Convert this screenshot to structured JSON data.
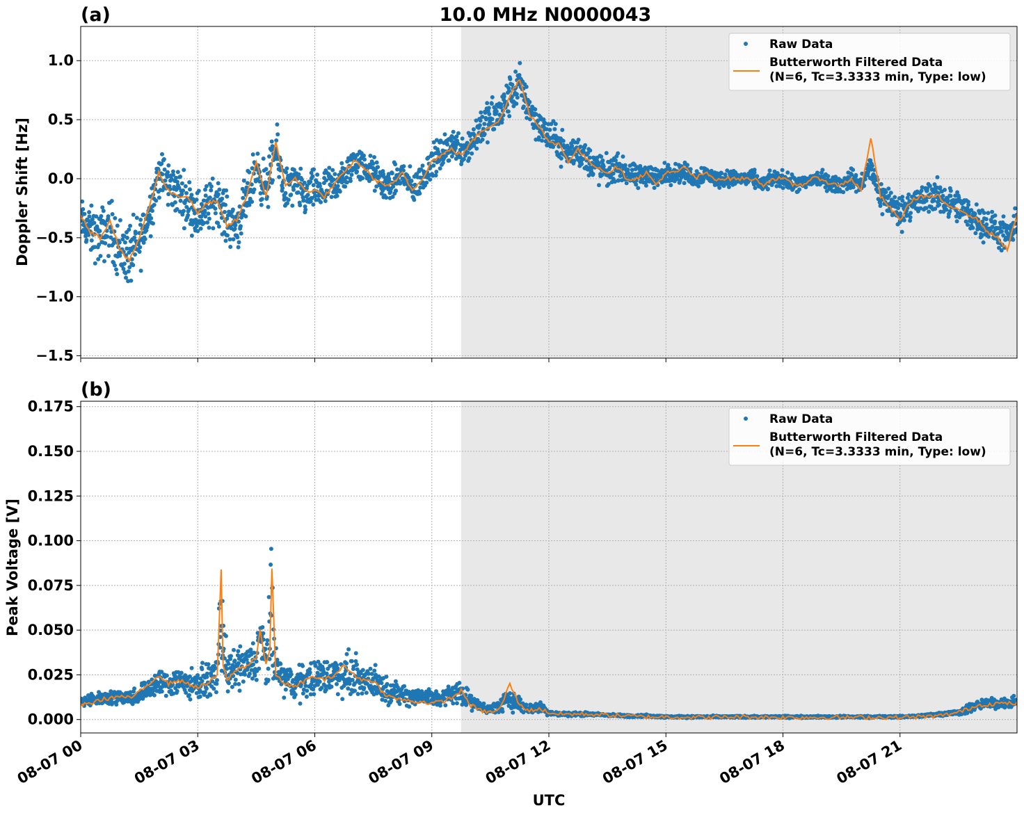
{
  "figure": {
    "title": "10.0 MHz N0000043",
    "xlabel": "UTC"
  },
  "colors": {
    "raw": "#1f77b4",
    "filtered": "#ff7f0e",
    "night_shade": "#e8e8e8",
    "grid": "#b0b0b0"
  },
  "chart_data": [
    {
      "type": "scatter",
      "panel_label": "(a)",
      "ylabel": "Doppler Shift [Hz]",
      "xlim": [
        0,
        24
      ],
      "ylim": [
        -1.52,
        1.29
      ],
      "yticks": [
        -1.5,
        -1.0,
        -0.5,
        0.0,
        0.5,
        1.0
      ],
      "ytick_labels": [
        "−1.5",
        "−1.0",
        "−0.5",
        "0.0",
        "0.5",
        "1.0"
      ],
      "xticks": [
        0,
        3,
        6,
        9,
        12,
        15,
        18,
        21
      ],
      "xtick_labels": [
        "08-07 00",
        "08-07 03",
        "08-07 06",
        "08-07 09",
        "08-07 12",
        "08-07 15",
        "08-07 18",
        "08-07 21"
      ],
      "grid": true,
      "shaded_span_hours": [
        9.75,
        24
      ],
      "legend_placement": "upper-right",
      "series": [
        {
          "name": "Raw Data",
          "kind": "points",
          "x_hours": [
            0.0,
            0.25,
            0.5,
            0.75,
            1.0,
            1.25,
            1.5,
            1.75,
            2.0,
            2.25,
            2.5,
            2.75,
            3.0,
            3.25,
            3.5,
            3.75,
            4.0,
            4.25,
            4.5,
            4.75,
            5.0,
            5.25,
            5.5,
            5.75,
            6.0,
            6.25,
            6.5,
            6.75,
            7.0,
            7.25,
            7.5,
            7.75,
            8.0,
            8.25,
            8.5,
            8.75,
            9.0,
            9.25,
            9.5,
            9.75,
            10.0,
            10.25,
            10.5,
            10.75,
            11.0,
            11.25,
            11.5,
            11.75,
            12.0,
            12.25,
            12.5,
            12.75,
            13.0,
            13.25,
            13.5,
            13.75,
            14.0,
            14.25,
            14.5,
            14.75,
            15.0,
            15.25,
            15.5,
            15.75,
            16.0,
            16.25,
            16.5,
            16.75,
            17.0,
            17.25,
            17.5,
            17.75,
            18.0,
            18.25,
            18.5,
            18.75,
            19.0,
            19.25,
            19.5,
            19.75,
            20.0,
            20.25,
            20.5,
            20.75,
            21.0,
            21.25,
            21.5,
            21.75,
            22.0,
            22.25,
            22.5,
            22.75,
            23.0,
            23.25,
            23.5,
            23.75,
            24.0
          ],
          "y_center": [
            -0.35,
            -0.45,
            -0.5,
            -0.4,
            -0.6,
            -0.65,
            -0.55,
            -0.3,
            0.05,
            -0.05,
            -0.1,
            -0.2,
            -0.3,
            -0.25,
            -0.15,
            -0.35,
            -0.4,
            -0.2,
            0.1,
            -0.1,
            0.25,
            -0.1,
            -0.05,
            -0.15,
            -0.1,
            -0.1,
            -0.05,
            0.0,
            0.15,
            0.1,
            0.05,
            -0.05,
            -0.05,
            0.05,
            -0.1,
            0.0,
            0.15,
            0.2,
            0.3,
            0.25,
            0.3,
            0.45,
            0.5,
            0.55,
            0.7,
            0.8,
            0.6,
            0.45,
            0.35,
            0.3,
            0.2,
            0.25,
            0.15,
            0.1,
            0.05,
            0.1,
            0.05,
            0.0,
            0.05,
            0.0,
            0.05,
            0.05,
            0.05,
            0.0,
            0.05,
            0.0,
            0.0,
            0.0,
            0.0,
            0.0,
            -0.05,
            0.0,
            0.0,
            -0.05,
            -0.05,
            0.0,
            0.0,
            -0.05,
            -0.05,
            0.0,
            -0.05,
            0.1,
            -0.15,
            -0.2,
            -0.3,
            -0.2,
            -0.2,
            -0.15,
            -0.15,
            -0.2,
            -0.25,
            -0.3,
            -0.35,
            -0.4,
            -0.45,
            -0.5,
            -0.4
          ],
          "y_spread": [
            0.25,
            0.3,
            0.35,
            0.35,
            0.4,
            0.4,
            0.35,
            0.3,
            0.3,
            0.3,
            0.3,
            0.3,
            0.3,
            0.3,
            0.3,
            0.3,
            0.3,
            0.3,
            0.3,
            0.3,
            0.3,
            0.3,
            0.25,
            0.25,
            0.25,
            0.25,
            0.25,
            0.2,
            0.2,
            0.2,
            0.2,
            0.2,
            0.2,
            0.2,
            0.2,
            0.2,
            0.2,
            0.2,
            0.2,
            0.2,
            0.25,
            0.25,
            0.25,
            0.25,
            0.25,
            0.25,
            0.25,
            0.2,
            0.2,
            0.2,
            0.2,
            0.2,
            0.2,
            0.2,
            0.2,
            0.15,
            0.15,
            0.15,
            0.15,
            0.15,
            0.12,
            0.12,
            0.12,
            0.12,
            0.12,
            0.1,
            0.1,
            0.1,
            0.1,
            0.1,
            0.1,
            0.1,
            0.1,
            0.1,
            0.1,
            0.1,
            0.1,
            0.1,
            0.1,
            0.12,
            0.12,
            0.15,
            0.2,
            0.2,
            0.2,
            0.2,
            0.2,
            0.2,
            0.2,
            0.2,
            0.2,
            0.2,
            0.2,
            0.2,
            0.2,
            0.2,
            0.2
          ]
        },
        {
          "name": "Butterworth Filtered Data\n(N=6, Tc=3.3333 min, Type: low)",
          "kind": "line",
          "x_hours": [
            0.0,
            0.25,
            0.5,
            0.75,
            1.0,
            1.25,
            1.5,
            1.75,
            2.0,
            2.25,
            2.5,
            2.75,
            3.0,
            3.25,
            3.5,
            3.75,
            4.0,
            4.25,
            4.5,
            4.75,
            5.0,
            5.25,
            5.5,
            5.75,
            6.0,
            6.25,
            6.5,
            6.75,
            7.0,
            7.25,
            7.5,
            7.75,
            8.0,
            8.25,
            8.5,
            8.75,
            9.0,
            9.25,
            9.5,
            9.75,
            10.0,
            10.25,
            10.5,
            10.75,
            11.0,
            11.25,
            11.5,
            11.75,
            12.0,
            12.25,
            12.5,
            12.75,
            13.0,
            13.25,
            13.5,
            13.75,
            14.0,
            14.25,
            14.5,
            14.75,
            15.0,
            15.25,
            15.5,
            15.75,
            16.0,
            16.25,
            16.5,
            16.75,
            17.0,
            17.25,
            17.5,
            17.75,
            18.0,
            18.25,
            18.5,
            18.75,
            19.0,
            19.25,
            19.5,
            19.75,
            20.0,
            20.25,
            20.5,
            20.75,
            21.0,
            21.25,
            21.5,
            21.75,
            22.0,
            22.25,
            22.5,
            22.75,
            23.0,
            23.25,
            23.5,
            23.75,
            24.0
          ],
          "y": [
            -0.3,
            -0.45,
            -0.5,
            -0.35,
            -0.6,
            -0.7,
            -0.5,
            -0.25,
            0.05,
            -0.1,
            -0.15,
            -0.15,
            -0.3,
            -0.2,
            -0.2,
            -0.4,
            -0.35,
            -0.15,
            0.15,
            -0.15,
            0.3,
            -0.05,
            0.0,
            -0.1,
            -0.1,
            -0.15,
            -0.05,
            0.05,
            0.15,
            0.1,
            0.0,
            -0.05,
            -0.05,
            0.05,
            -0.1,
            0.0,
            0.15,
            0.2,
            0.25,
            0.2,
            0.3,
            0.4,
            0.45,
            0.5,
            0.7,
            0.85,
            0.55,
            0.45,
            0.3,
            0.3,
            0.15,
            0.25,
            0.15,
            0.1,
            0.05,
            0.1,
            0.0,
            0.0,
            0.05,
            -0.05,
            0.05,
            0.05,
            0.1,
            0.0,
            0.05,
            0.0,
            0.0,
            0.0,
            0.0,
            0.0,
            -0.05,
            0.0,
            0.0,
            -0.05,
            -0.05,
            0.0,
            0.0,
            -0.05,
            -0.05,
            0.0,
            -0.1,
            0.35,
            -0.15,
            -0.25,
            -0.35,
            -0.2,
            -0.15,
            -0.15,
            -0.15,
            -0.25,
            -0.25,
            -0.3,
            -0.35,
            -0.45,
            -0.5,
            -0.6,
            -0.3
          ]
        }
      ]
    },
    {
      "type": "scatter",
      "panel_label": "(b)",
      "ylabel": "Peak Voltage [V]",
      "xlim": [
        0,
        24
      ],
      "ylim": [
        -0.0075,
        0.178
      ],
      "yticks": [
        0.0,
        0.025,
        0.05,
        0.075,
        0.1,
        0.125,
        0.15,
        0.175
      ],
      "ytick_labels": [
        "0.000",
        "0.025",
        "0.050",
        "0.075",
        "0.100",
        "0.125",
        "0.150",
        "0.175"
      ],
      "xticks": [
        0,
        3,
        6,
        9,
        12,
        15,
        18,
        21
      ],
      "xtick_labels": [
        "08-07 00",
        "08-07 03",
        "08-07 06",
        "08-07 09",
        "08-07 12",
        "08-07 15",
        "08-07 18",
        "08-07 21"
      ],
      "grid": true,
      "shaded_span_hours": [
        9.75,
        24
      ],
      "legend_placement": "upper-right",
      "series": [
        {
          "name": "Raw Data",
          "kind": "points",
          "x_hours": [
            0.0,
            0.25,
            0.5,
            0.75,
            1.0,
            1.25,
            1.5,
            1.75,
            2.0,
            2.25,
            2.5,
            2.75,
            3.0,
            3.25,
            3.5,
            3.6,
            3.75,
            4.0,
            4.25,
            4.5,
            4.6,
            4.75,
            4.9,
            5.0,
            5.25,
            5.5,
            5.75,
            6.0,
            6.25,
            6.5,
            6.75,
            7.0,
            7.25,
            7.5,
            7.75,
            8.0,
            8.25,
            8.5,
            8.75,
            9.0,
            9.25,
            9.5,
            9.75,
            10.0,
            10.25,
            10.5,
            10.75,
            11.0,
            11.25,
            11.5,
            11.75,
            12.0,
            12.25,
            12.5,
            12.75,
            13.0,
            13.5,
            14.0,
            14.5,
            15.0,
            15.5,
            16.0,
            16.5,
            17.0,
            17.5,
            18.0,
            18.5,
            19.0,
            19.5,
            20.0,
            20.5,
            21.0,
            21.5,
            22.0,
            22.5,
            22.75,
            23.0,
            23.25,
            23.5,
            23.75,
            24.0
          ],
          "y_center": [
            0.01,
            0.011,
            0.012,
            0.012,
            0.013,
            0.012,
            0.014,
            0.018,
            0.02,
            0.02,
            0.022,
            0.02,
            0.02,
            0.022,
            0.025,
            0.06,
            0.025,
            0.028,
            0.03,
            0.032,
            0.045,
            0.03,
            0.055,
            0.028,
            0.022,
            0.02,
            0.022,
            0.024,
            0.024,
            0.025,
            0.026,
            0.024,
            0.022,
            0.022,
            0.018,
            0.015,
            0.014,
            0.013,
            0.013,
            0.012,
            0.012,
            0.014,
            0.016,
            0.01,
            0.007,
            0.006,
            0.008,
            0.012,
            0.008,
            0.006,
            0.007,
            0.004,
            0.003,
            0.003,
            0.003,
            0.003,
            0.0025,
            0.002,
            0.002,
            0.0015,
            0.0015,
            0.0015,
            0.0015,
            0.0015,
            0.0015,
            0.0015,
            0.0015,
            0.0015,
            0.0015,
            0.0015,
            0.0015,
            0.0015,
            0.002,
            0.003,
            0.004,
            0.006,
            0.008,
            0.009,
            0.009,
            0.009,
            0.01
          ],
          "y_spread": [
            0.004,
            0.005,
            0.005,
            0.005,
            0.006,
            0.006,
            0.007,
            0.009,
            0.011,
            0.011,
            0.012,
            0.012,
            0.012,
            0.012,
            0.014,
            0.05,
            0.015,
            0.016,
            0.017,
            0.018,
            0.028,
            0.018,
            0.06,
            0.016,
            0.014,
            0.013,
            0.014,
            0.014,
            0.015,
            0.016,
            0.017,
            0.016,
            0.014,
            0.013,
            0.011,
            0.009,
            0.008,
            0.008,
            0.007,
            0.007,
            0.007,
            0.008,
            0.01,
            0.006,
            0.004,
            0.003,
            0.006,
            0.009,
            0.006,
            0.004,
            0.005,
            0.002,
            0.0015,
            0.0015,
            0.0015,
            0.0015,
            0.001,
            0.001,
            0.001,
            0.0008,
            0.0008,
            0.0008,
            0.0008,
            0.0008,
            0.0008,
            0.0008,
            0.0008,
            0.0008,
            0.0008,
            0.0008,
            0.0008,
            0.0008,
            0.001,
            0.0015,
            0.002,
            0.004,
            0.004,
            0.004,
            0.004,
            0.004,
            0.004
          ]
        },
        {
          "name": "Butterworth Filtered Data\n(N=6, Tc=3.3333 min, Type: low)",
          "kind": "line",
          "x_hours": [
            0.0,
            0.25,
            0.5,
            0.75,
            1.0,
            1.25,
            1.5,
            1.75,
            2.0,
            2.25,
            2.5,
            2.75,
            3.0,
            3.25,
            3.5,
            3.6,
            3.65,
            3.75,
            4.0,
            4.25,
            4.5,
            4.6,
            4.75,
            4.85,
            4.9,
            5.0,
            5.25,
            5.5,
            5.75,
            6.0,
            6.25,
            6.5,
            6.75,
            7.0,
            7.25,
            7.5,
            7.75,
            8.0,
            8.25,
            8.5,
            8.75,
            9.0,
            9.25,
            9.5,
            9.75,
            10.0,
            10.25,
            10.5,
            10.75,
            11.0,
            11.25,
            11.5,
            11.75,
            12.0,
            12.25,
            12.5,
            13.0,
            13.5,
            14.0,
            14.5,
            15.0,
            16.0,
            17.0,
            18.0,
            19.0,
            20.0,
            21.0,
            21.5,
            22.0,
            22.5,
            22.75,
            23.0,
            23.5,
            24.0
          ],
          "y": [
            0.008,
            0.009,
            0.011,
            0.012,
            0.013,
            0.012,
            0.015,
            0.02,
            0.025,
            0.02,
            0.022,
            0.02,
            0.018,
            0.02,
            0.025,
            0.083,
            0.03,
            0.022,
            0.028,
            0.03,
            0.035,
            0.05,
            0.03,
            0.04,
            0.084,
            0.025,
            0.02,
            0.018,
            0.022,
            0.024,
            0.022,
            0.025,
            0.03,
            0.025,
            0.022,
            0.022,
            0.015,
            0.012,
            0.011,
            0.01,
            0.01,
            0.009,
            0.01,
            0.012,
            0.016,
            0.008,
            0.005,
            0.004,
            0.006,
            0.02,
            0.008,
            0.005,
            0.006,
            0.004,
            0.003,
            0.003,
            0.003,
            0.0025,
            0.002,
            0.0015,
            0.0015,
            0.0012,
            0.0015,
            0.0012,
            0.0012,
            0.0012,
            0.0012,
            0.0015,
            0.002,
            0.004,
            0.006,
            0.008,
            0.009,
            0.009
          ]
        }
      ]
    }
  ]
}
